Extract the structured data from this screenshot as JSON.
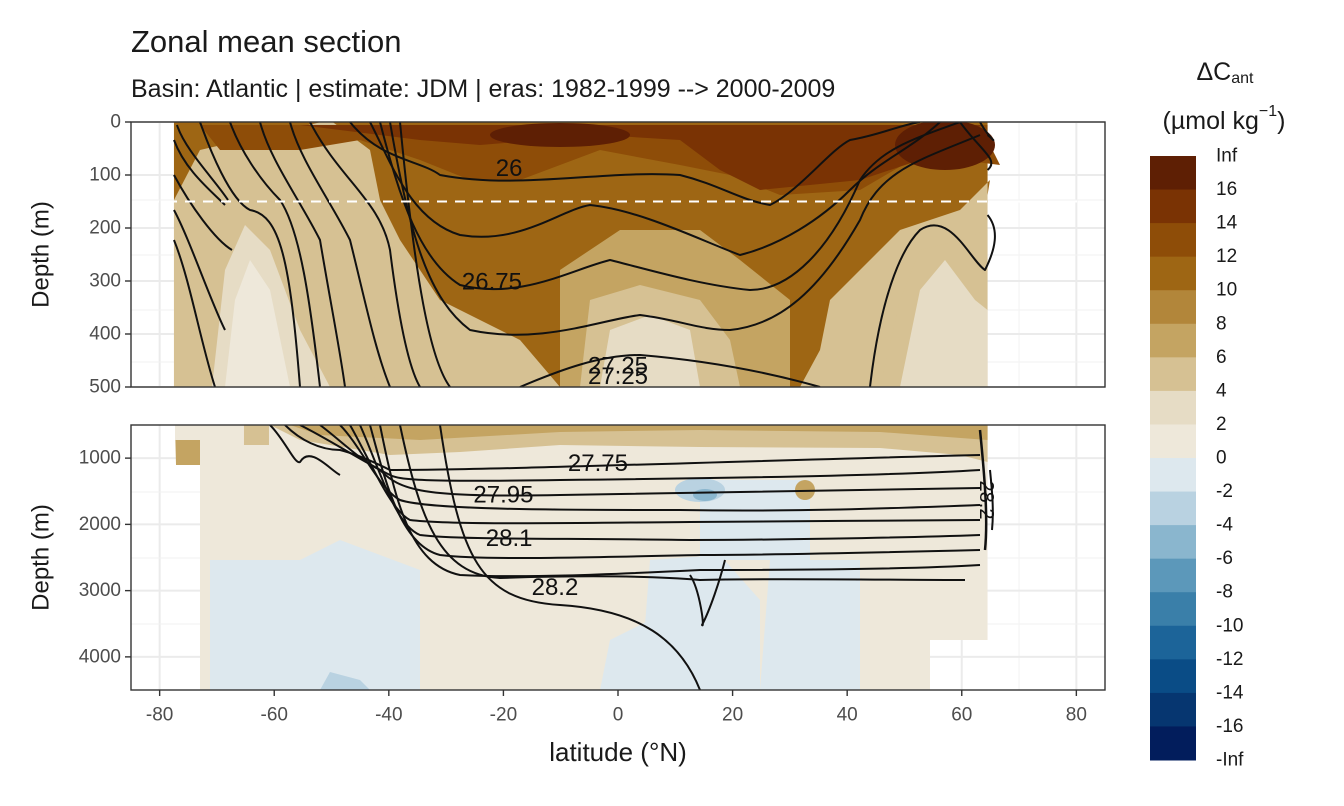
{
  "title": "Zonal mean section",
  "subtitle": "Basin: Atlantic | estimate: JDM  | eras: 1982-1999 --> 2000-2009",
  "chart_data": {
    "type": "heatmap",
    "xlabel": "latitude (°N)",
    "ylabel": "Depth (m)",
    "x_ticks": [
      "-80",
      "-60",
      "-40",
      "-20",
      "0",
      "20",
      "40",
      "60",
      "80"
    ],
    "xlim": [
      -85,
      85
    ],
    "data_xlim": [
      -77.5,
      64.5
    ],
    "panels": [
      {
        "name": "upper",
        "ylim": [
          0,
          500
        ],
        "y_ticks": [
          "0",
          "100",
          "200",
          "300",
          "400",
          "500"
        ],
        "reference_line_depth": 150
      },
      {
        "name": "lower",
        "ylim": [
          500,
          4500
        ],
        "y_ticks": [
          "1000",
          "2000",
          "3000",
          "4000"
        ]
      }
    ],
    "legend": {
      "title_main": "ΔC",
      "title_sub": "ant",
      "unit_base": "(µmol kg",
      "unit_exp": "−1",
      "unit_close": ")",
      "placement": "right",
      "labels": [
        "Inf",
        "16",
        "14",
        "12",
        "10",
        "8",
        "6",
        "4",
        "2",
        "0",
        "-2",
        "-4",
        "-6",
        "-8",
        "-10",
        "-12",
        "-14",
        "-16",
        "-Inf"
      ],
      "colors": [
        "#5e1f04",
        "#7a3304",
        "#8e4d08",
        "#9e6614",
        "#b2863a",
        "#c4a462",
        "#d6c193",
        "#e6dcc5",
        "#eee8da",
        "#dde8ee",
        "#b9d2e1",
        "#8ab6ce",
        "#5c98ba",
        "#3a7fa9",
        "#1c6499",
        "#0a4c86",
        "#063670",
        "#021d5c"
      ]
    },
    "contour_labels": [
      {
        "text": "26",
        "x": -19,
        "y": 88
      },
      {
        "text": "26.75",
        "x": -22,
        "y": 302
      },
      {
        "text": "27.25",
        "x": 0,
        "y": 460
      },
      {
        "text": "27.25",
        "x": 0,
        "y": 480
      },
      {
        "text": "27.75",
        "x": -3.5,
        "y": 1080
      },
      {
        "text": "27.95",
        "x": -20,
        "y": 1560
      },
      {
        "text": "28.1",
        "x": -19,
        "y": 2210
      },
      {
        "text": "28.2",
        "x": -11,
        "y": 2950
      }
    ]
  }
}
